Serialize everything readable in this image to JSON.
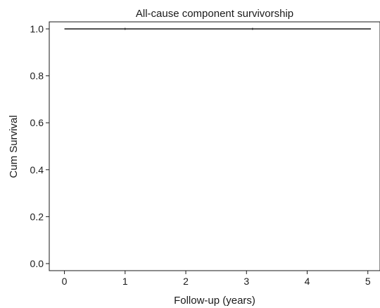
{
  "chart_data": {
    "type": "line",
    "title": "All-cause component survivorship",
    "xlabel": "Follow-up (years)",
    "ylabel": "Cum Survival",
    "xlim": [
      -0.25,
      5.2
    ],
    "ylim": [
      -0.03,
      1.03
    ],
    "xticks": [
      0,
      1,
      2,
      3,
      4,
      5
    ],
    "xtick_labels": [
      "0",
      "1",
      "2",
      "3",
      "4",
      "5"
    ],
    "yticks": [
      0.0,
      0.2,
      0.4,
      0.6,
      0.8,
      1.0
    ],
    "ytick_labels": [
      "0.0",
      "0.2",
      "0.4",
      "0.6",
      "0.8",
      "1.0"
    ],
    "grid": false,
    "legend": "none",
    "series": [
      {
        "x": [
          0,
          5.05
        ],
        "y": [
          1.0,
          1.0
        ],
        "color": "#1a1a1a",
        "step": true
      }
    ],
    "censor_marks_x": [
      1.0,
      3.1
    ]
  }
}
